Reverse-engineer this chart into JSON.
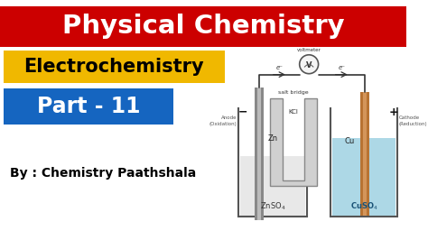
{
  "bg_color": "#ffffff",
  "header_bg": "#cc0000",
  "header_text": "Physical Chemistry",
  "header_text_color": "#ffffff",
  "electrochemistry_bg": "#f0b800",
  "electrochemistry_text": "Electrochemistry",
  "electrochemistry_text_color": "#000000",
  "part_bg": "#1565c0",
  "part_text": "Part - 11",
  "part_text_color": "#ffffff",
  "author_text": "By : Chemistry Paathshala",
  "author_text_color": "#000000",
  "wire_color": "#333333",
  "label_left_electrode": "Zn",
  "label_right_electrode": "Cu",
  "label_salt_bridge": "salt bridge",
  "label_kcl": "KCl",
  "label_voltmeter": "voltmeter",
  "label_anode": "Anode\n(Oxidation)",
  "label_cathode": "Cathode\n(Reduction)",
  "label_eminus_left": "e⁻",
  "label_eminus_right": "e⁻",
  "minus_sign": "−",
  "plus_sign": "+"
}
